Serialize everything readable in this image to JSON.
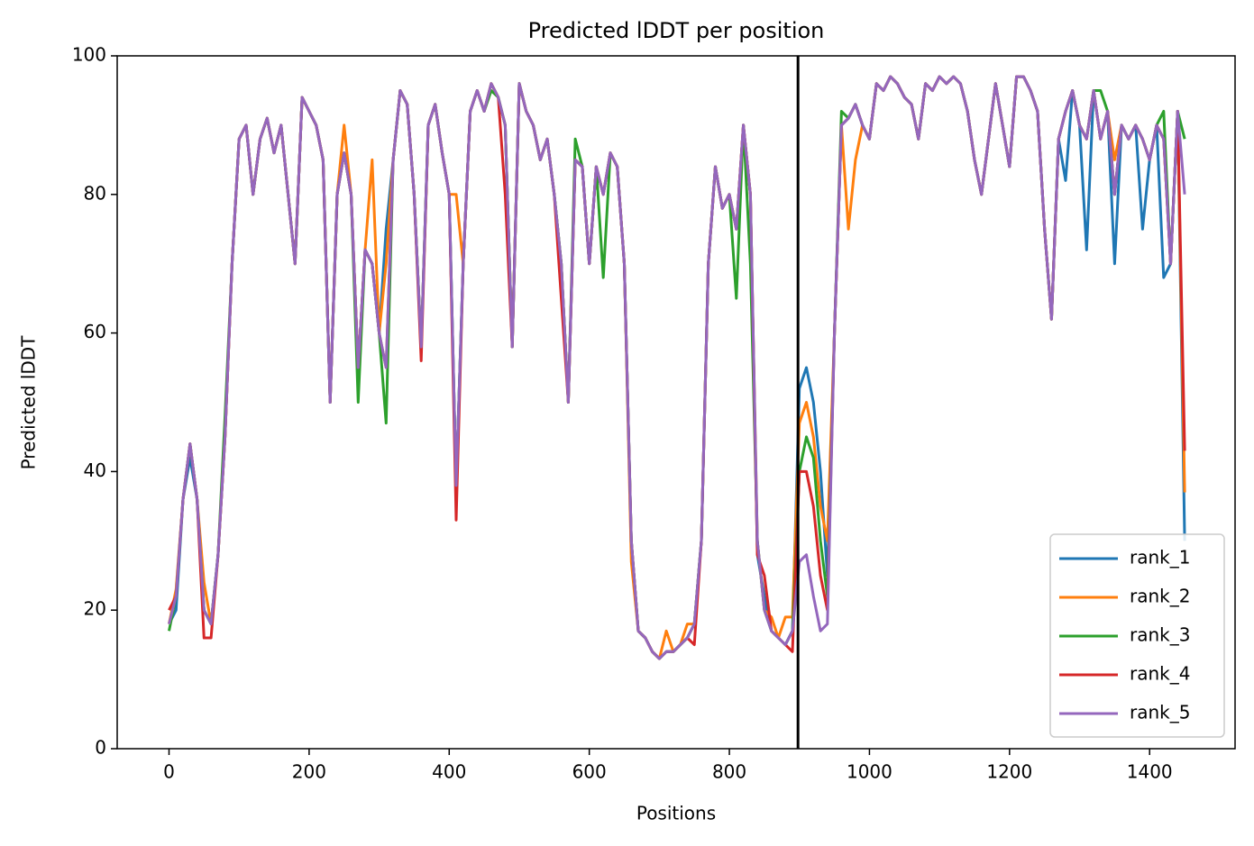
{
  "chart_data": {
    "type": "line",
    "title": "Predicted lDDT per position",
    "x_label": "Positions",
    "y_label": "Predicted lDDT",
    "x": [
      0,
      10,
      20,
      30,
      40,
      50,
      60,
      70,
      80,
      90,
      100,
      110,
      120,
      130,
      140,
      150,
      160,
      170,
      180,
      190,
      200,
      210,
      220,
      230,
      240,
      250,
      260,
      270,
      280,
      290,
      300,
      310,
      320,
      330,
      340,
      350,
      360,
      370,
      380,
      390,
      400,
      410,
      420,
      430,
      440,
      450,
      460,
      470,
      480,
      490,
      500,
      510,
      520,
      530,
      540,
      550,
      560,
      570,
      580,
      590,
      600,
      610,
      620,
      630,
      640,
      650,
      660,
      670,
      680,
      690,
      700,
      710,
      720,
      730,
      740,
      750,
      760,
      770,
      780,
      790,
      800,
      810,
      820,
      830,
      840,
      850,
      860,
      870,
      880,
      890,
      900,
      910,
      920,
      930,
      940,
      950,
      960,
      970,
      980,
      990,
      1000,
      1010,
      1020,
      1030,
      1040,
      1050,
      1060,
      1070,
      1080,
      1090,
      1100,
      1110,
      1120,
      1130,
      1140,
      1150,
      1160,
      1170,
      1180,
      1190,
      1200,
      1210,
      1220,
      1230,
      1240,
      1250,
      1260,
      1270,
      1280,
      1290,
      1300,
      1310,
      1320,
      1330,
      1340,
      1350,
      1360,
      1370,
      1380,
      1390,
      1400,
      1410,
      1420,
      1430,
      1440,
      1450
    ],
    "series": [
      {
        "name": "rank_1",
        "color": "#1f77b4",
        "values": [
          18,
          20,
          36,
          42,
          36,
          20,
          18,
          28,
          45,
          70,
          88,
          90,
          80,
          88,
          91,
          86,
          90,
          80,
          70,
          94,
          92,
          90,
          85,
          50,
          80,
          86,
          80,
          55,
          72,
          70,
          60,
          75,
          85,
          95,
          93,
          80,
          58,
          90,
          93,
          86,
          80,
          38,
          70,
          92,
          95,
          92,
          96,
          94,
          90,
          58,
          96,
          92,
          90,
          85,
          88,
          80,
          70,
          50,
          85,
          84,
          70,
          84,
          80,
          86,
          84,
          70,
          30,
          17,
          16,
          14,
          13,
          14,
          14,
          15,
          16,
          18,
          30,
          70,
          84,
          78,
          80,
          75,
          90,
          80,
          28,
          22,
          17,
          16,
          15,
          17,
          52,
          55,
          50,
          40,
          25,
          60,
          90,
          91,
          93,
          90,
          88,
          96,
          95,
          97,
          96,
          94,
          93,
          88,
          96,
          95,
          97,
          96,
          97,
          96,
          92,
          85,
          80,
          88,
          96,
          90,
          84,
          97,
          97,
          95,
          92,
          75,
          62,
          88,
          82,
          95,
          90,
          72,
          95,
          88,
          92,
          70,
          90,
          88,
          90,
          75,
          85,
          90,
          68,
          70,
          92,
          30
        ]
      },
      {
        "name": "rank_2",
        "color": "#ff7f0e",
        "values": [
          18,
          23,
          36,
          44,
          36,
          24,
          18,
          28,
          45,
          70,
          88,
          90,
          80,
          88,
          91,
          86,
          90,
          80,
          70,
          94,
          92,
          90,
          85,
          50,
          80,
          90,
          80,
          55,
          72,
          85,
          60,
          70,
          85,
          95,
          93,
          80,
          58,
          90,
          93,
          86,
          80,
          80,
          70,
          92,
          95,
          92,
          96,
          94,
          90,
          58,
          96,
          92,
          90,
          85,
          88,
          80,
          70,
          50,
          85,
          84,
          70,
          84,
          80,
          86,
          84,
          70,
          27,
          17,
          16,
          14,
          13,
          17,
          14,
          15,
          18,
          18,
          30,
          70,
          84,
          78,
          80,
          75,
          90,
          80,
          30,
          20,
          19,
          16,
          19,
          19,
          47,
          50,
          45,
          35,
          30,
          60,
          90,
          75,
          85,
          90,
          88,
          96,
          95,
          97,
          96,
          94,
          93,
          88,
          96,
          95,
          97,
          96,
          97,
          96,
          92,
          85,
          80,
          88,
          96,
          90,
          84,
          97,
          97,
          95,
          92,
          75,
          62,
          88,
          92,
          95,
          90,
          88,
          95,
          88,
          92,
          85,
          90,
          88,
          90,
          88,
          85,
          90,
          88,
          70,
          92,
          37
        ]
      },
      {
        "name": "rank_3",
        "color": "#2ca02c",
        "values": [
          17,
          22,
          36,
          44,
          36,
          20,
          18,
          28,
          48,
          70,
          88,
          90,
          80,
          88,
          91,
          86,
          90,
          80,
          70,
          94,
          92,
          90,
          85,
          50,
          80,
          86,
          80,
          50,
          72,
          70,
          60,
          47,
          85,
          95,
          93,
          80,
          58,
          90,
          93,
          86,
          80,
          38,
          70,
          92,
          95,
          92,
          95,
          94,
          90,
          58,
          96,
          92,
          90,
          85,
          88,
          80,
          70,
          50,
          88,
          84,
          70,
          84,
          68,
          86,
          84,
          70,
          30,
          17,
          16,
          14,
          13,
          14,
          14,
          15,
          16,
          18,
          30,
          70,
          84,
          78,
          80,
          65,
          90,
          70,
          30,
          20,
          17,
          16,
          15,
          17,
          40,
          45,
          42,
          30,
          22,
          60,
          92,
          91,
          93,
          90,
          88,
          96,
          95,
          97,
          96,
          94,
          93,
          88,
          96,
          95,
          97,
          96,
          97,
          96,
          92,
          85,
          80,
          88,
          96,
          90,
          84,
          97,
          97,
          95,
          92,
          75,
          62,
          88,
          92,
          95,
          90,
          88,
          95,
          95,
          92,
          80,
          90,
          88,
          90,
          88,
          85,
          90,
          92,
          70,
          92,
          88
        ]
      },
      {
        "name": "rank_4",
        "color": "#d62728",
        "values": [
          20,
          22,
          36,
          44,
          36,
          16,
          16,
          28,
          45,
          70,
          88,
          90,
          80,
          88,
          91,
          86,
          90,
          80,
          70,
          94,
          92,
          90,
          85,
          50,
          80,
          86,
          80,
          55,
          72,
          70,
          60,
          55,
          85,
          95,
          93,
          80,
          56,
          90,
          93,
          86,
          80,
          33,
          70,
          92,
          95,
          92,
          96,
          94,
          80,
          58,
          96,
          92,
          90,
          85,
          88,
          80,
          65,
          50,
          85,
          84,
          70,
          84,
          80,
          86,
          84,
          70,
          30,
          17,
          16,
          14,
          13,
          14,
          14,
          15,
          16,
          15,
          30,
          70,
          84,
          78,
          80,
          75,
          90,
          80,
          28,
          25,
          17,
          16,
          15,
          14,
          40,
          40,
          35,
          25,
          20,
          60,
          90,
          91,
          93,
          90,
          88,
          96,
          95,
          97,
          96,
          94,
          93,
          88,
          96,
          95,
          97,
          96,
          97,
          96,
          92,
          85,
          80,
          88,
          96,
          90,
          84,
          97,
          97,
          95,
          92,
          75,
          62,
          88,
          92,
          95,
          90,
          88,
          95,
          88,
          92,
          80,
          90,
          88,
          90,
          88,
          85,
          90,
          88,
          70,
          92,
          43
        ]
      },
      {
        "name": "rank_5",
        "color": "#9467bd",
        "values": [
          18,
          22,
          36,
          44,
          36,
          20,
          18,
          28,
          45,
          70,
          88,
          90,
          80,
          88,
          91,
          86,
          90,
          80,
          70,
          94,
          92,
          90,
          85,
          50,
          80,
          86,
          80,
          55,
          72,
          70,
          60,
          55,
          85,
          95,
          93,
          80,
          58,
          90,
          93,
          86,
          80,
          38,
          70,
          92,
          95,
          92,
          96,
          94,
          90,
          58,
          96,
          92,
          90,
          85,
          88,
          80,
          70,
          50,
          85,
          84,
          70,
          84,
          80,
          86,
          84,
          70,
          30,
          17,
          16,
          14,
          13,
          14,
          14,
          15,
          16,
          18,
          30,
          70,
          84,
          78,
          80,
          75,
          90,
          80,
          30,
          20,
          17,
          16,
          15,
          17,
          27,
          28,
          22,
          17,
          18,
          60,
          90,
          91,
          93,
          90,
          88,
          96,
          95,
          97,
          96,
          94,
          93,
          88,
          96,
          95,
          97,
          96,
          97,
          96,
          92,
          85,
          80,
          88,
          96,
          90,
          84,
          97,
          97,
          95,
          92,
          75,
          62,
          88,
          92,
          95,
          90,
          88,
          95,
          88,
          92,
          80,
          90,
          88,
          90,
          88,
          85,
          90,
          88,
          70,
          92,
          80
        ]
      }
    ],
    "vlines": [
      898
    ],
    "vline_color": "#000000",
    "xlim": [
      -74,
      1522
    ],
    "xticks": [
      0,
      200,
      400,
      600,
      800,
      1000,
      1200,
      1400
    ],
    "ylim": [
      0,
      100
    ],
    "yticks": [
      0,
      20,
      40,
      60,
      80,
      100
    ],
    "legend": "lower right"
  }
}
